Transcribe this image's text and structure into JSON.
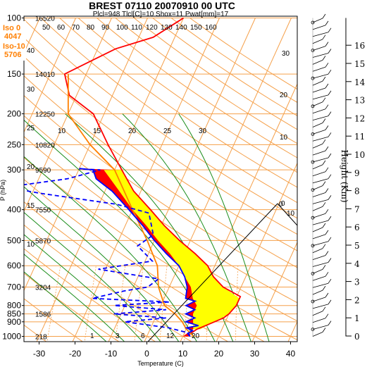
{
  "chart_data": {
    "type": "line",
    "title": "BREST 07110 20070910 00 UTC",
    "subtitle": "Plcl=948 Tlcl[C]=10 Shox=11 Pwat[mm]=17",
    "xlabel": "Temperature (C)",
    "ylabel": "P (hPa)",
    "y2label": "Height (Km)",
    "xlim": [
      -35,
      50
    ],
    "ylim": [
      1050,
      100
    ],
    "xticks": [
      -30,
      -20,
      -10,
      0,
      10,
      20,
      30,
      40
    ],
    "yticks": [
      100,
      150,
      200,
      250,
      300,
      400,
      500,
      600,
      700,
      800,
      850,
      900,
      1000
    ],
    "height_ticks_km": [
      0,
      1,
      2,
      3,
      4,
      5,
      6,
      7,
      8,
      9,
      10,
      11,
      12,
      13,
      14,
      15,
      16
    ],
    "geopotential_labels": [
      {
        "p": 100,
        "text": "16520"
      },
      {
        "p": 150,
        "text": "14010"
      },
      {
        "p": 200,
        "text": "12250"
      },
      {
        "p": 250,
        "text": "10820"
      },
      {
        "p": 300,
        "text": "9590"
      },
      {
        "p": 400,
        "text": "7550"
      },
      {
        "p": 500,
        "text": "5870"
      },
      {
        "p": 700,
        "text": "3204"
      },
      {
        "p": 850,
        "text": "1586"
      },
      {
        "p": 1000,
        "text": "218"
      }
    ],
    "freezing_levels": [
      {
        "label": "Iso 0",
        "value": "4047"
      },
      {
        "label": "Iso-10",
        "value": "5706"
      }
    ],
    "isotherm_labels": [
      -30,
      -20,
      -10,
      0,
      10,
      20,
      30
    ],
    "dry_adiabat_labels": [
      30,
      20,
      10,
      0,
      10,
      20,
      30
    ],
    "mixing_ratio_labels": [
      1,
      3,
      6,
      12,
      20
    ],
    "moist_adiabat_labels": [
      10,
      15,
      20,
      25,
      30
    ],
    "rh_labels": [
      40,
      30,
      25,
      20,
      15,
      10
    ],
    "rh_top_labels": [
      50,
      60,
      70,
      80,
      90,
      100,
      110,
      120,
      130,
      140,
      150,
      160
    ],
    "series": [
      {
        "name": "",
        "color": "#ff0000",
        "points": [
          [
            11,
            1000
          ],
          [
            12,
            975
          ],
          [
            13,
            950
          ],
          [
            15,
            925
          ],
          [
            17,
            900
          ],
          [
            19,
            875
          ],
          [
            20,
            850
          ],
          [
            21,
            800
          ],
          [
            21,
            750
          ],
          [
            15,
            700
          ],
          [
            11,
            650
          ],
          [
            8,
            600
          ],
          [
            3,
            550
          ],
          [
            -3,
            500
          ],
          [
            -9,
            450
          ],
          [
            -15,
            400
          ],
          [
            -22,
            350
          ],
          [
            -28,
            300
          ],
          [
            -35,
            250
          ],
          [
            -43,
            200
          ],
          [
            -52,
            175
          ],
          [
            -56,
            150
          ],
          [
            -45,
            125
          ],
          [
            -36,
            115
          ],
          [
            -30,
            100
          ]
        ]
      },
      {
        "name": "",
        "color": "#ff8000",
        "points": [
          [
            13,
            1000
          ],
          [
            10,
            948
          ],
          [
            8,
            900
          ],
          [
            5,
            850
          ],
          [
            1,
            800
          ],
          [
            -3,
            700
          ],
          [
            -6,
            600
          ],
          [
            -12,
            500
          ],
          [
            -20,
            400
          ],
          [
            -30,
            300
          ],
          [
            -40,
            250
          ],
          [
            -50,
            200
          ],
          [
            -55,
            150
          ]
        ]
      },
      {
        "name": "",
        "color": "#0000ff",
        "points": [
          [
            12,
            1000
          ],
          [
            11,
            980
          ],
          [
            12,
            960
          ],
          [
            10,
            940
          ],
          [
            13,
            925
          ],
          [
            9,
            900
          ],
          [
            11,
            875
          ],
          [
            8,
            850
          ],
          [
            10,
            825
          ],
          [
            7,
            800
          ],
          [
            9,
            775
          ],
          [
            6,
            760
          ],
          [
            5,
            700
          ],
          [
            3,
            650
          ],
          [
            0,
            600
          ],
          [
            -5,
            550
          ],
          [
            -10,
            500
          ],
          [
            -15,
            450
          ],
          [
            -21,
            400
          ],
          [
            -28,
            350
          ],
          [
            -34,
            320
          ],
          [
            -36,
            300
          ],
          [
            -40,
            297
          ]
        ]
      },
      {
        "name": "",
        "color": "#0000ff",
        "dashed": true,
        "points": [
          [
            12,
            1000
          ],
          [
            11,
            975
          ],
          [
            5,
            940
          ],
          [
            -8,
            900
          ],
          [
            3,
            875
          ],
          [
            -12,
            850
          ],
          [
            2,
            825
          ],
          [
            -13,
            800
          ],
          [
            2,
            780
          ],
          [
            -20,
            760
          ],
          [
            -12,
            720
          ],
          [
            -6,
            700
          ],
          [
            -4,
            660
          ],
          [
            -22,
            615
          ],
          [
            -8,
            580
          ],
          [
            -14,
            520
          ],
          [
            -11,
            480
          ],
          [
            -15,
            410
          ],
          [
            -25,
            385
          ],
          [
            -48,
            355
          ],
          [
            -58,
            340
          ],
          [
            -42,
            320
          ],
          [
            -34,
            300
          ],
          [
            -40,
            298
          ]
        ]
      }
    ],
    "cape_region_color": "#ffff00",
    "cin_region_color": "#ff0000",
    "grid": true
  }
}
